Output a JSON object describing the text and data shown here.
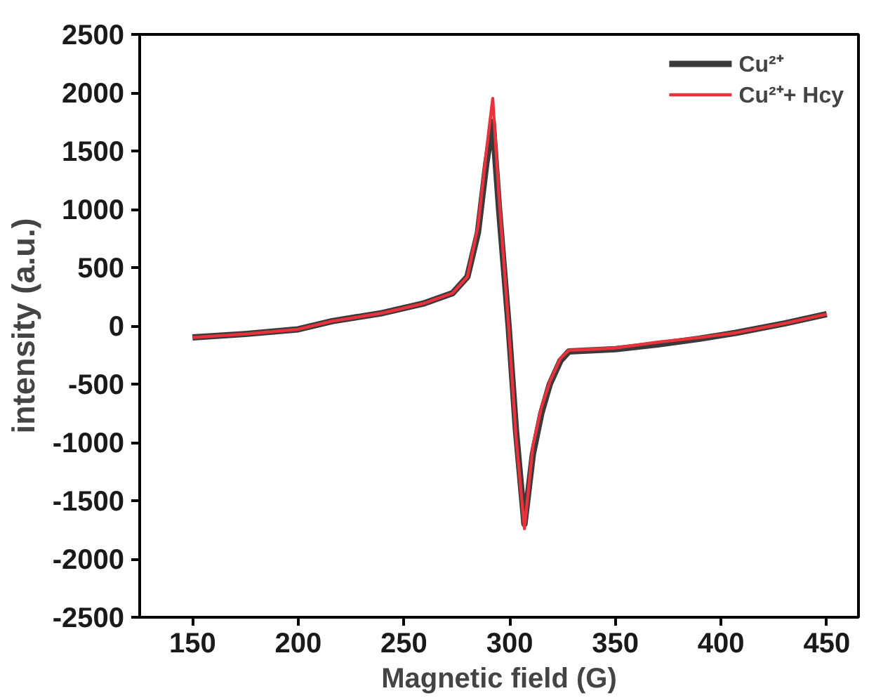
{
  "chart_data": {
    "type": "line",
    "xlabel": "Magnetic field (G)",
    "ylabel": "intensity (a.u.)",
    "xlim": [
      125,
      465
    ],
    "xticks": [
      150,
      200,
      250,
      300,
      350,
      400,
      450
    ],
    "ylim": [
      -2500,
      2500
    ],
    "yticks": [
      -2500,
      -2000,
      -1500,
      -1000,
      -500,
      0,
      500,
      1000,
      1500,
      2000,
      2500
    ],
    "grid": false,
    "legend": "top right",
    "line_style": "solid",
    "marker": "none",
    "series": [
      {
        "name": "Cu²⁺",
        "color": "#3a3a3a",
        "x": [
          150,
          175,
          200,
          216,
          240,
          259,
          273,
          280,
          285,
          289,
          292,
          295,
          299.5,
          303,
          307,
          311,
          315,
          319,
          324,
          328,
          340,
          350,
          370,
          390,
          407,
          430,
          450
        ],
        "values": [
          -100,
          -70,
          -30,
          40,
          110,
          190,
          280,
          420,
          800,
          1400,
          1750,
          1000,
          0,
          -900,
          -1700,
          -1100,
          -750,
          -500,
          -300,
          -220,
          -210,
          -200,
          -160,
          -110,
          -60,
          20,
          100
        ]
      },
      {
        "name": "Cu²⁺+ Hcy",
        "color": "#e8323c",
        "x": [
          150,
          175,
          200,
          216,
          240,
          259,
          273,
          280,
          285,
          289,
          292,
          295,
          299.5,
          303,
          307,
          311,
          315,
          319,
          324,
          328,
          340,
          350,
          370,
          390,
          407,
          430,
          450
        ],
        "values": [
          -100,
          -70,
          -30,
          40,
          110,
          190,
          280,
          420,
          850,
          1500,
          1950,
          1100,
          0,
          -950,
          -1740,
          -1030,
          -700,
          -480,
          -280,
          -210,
          -200,
          -190,
          -140,
          -100,
          -60,
          20,
          100
        ]
      }
    ]
  }
}
